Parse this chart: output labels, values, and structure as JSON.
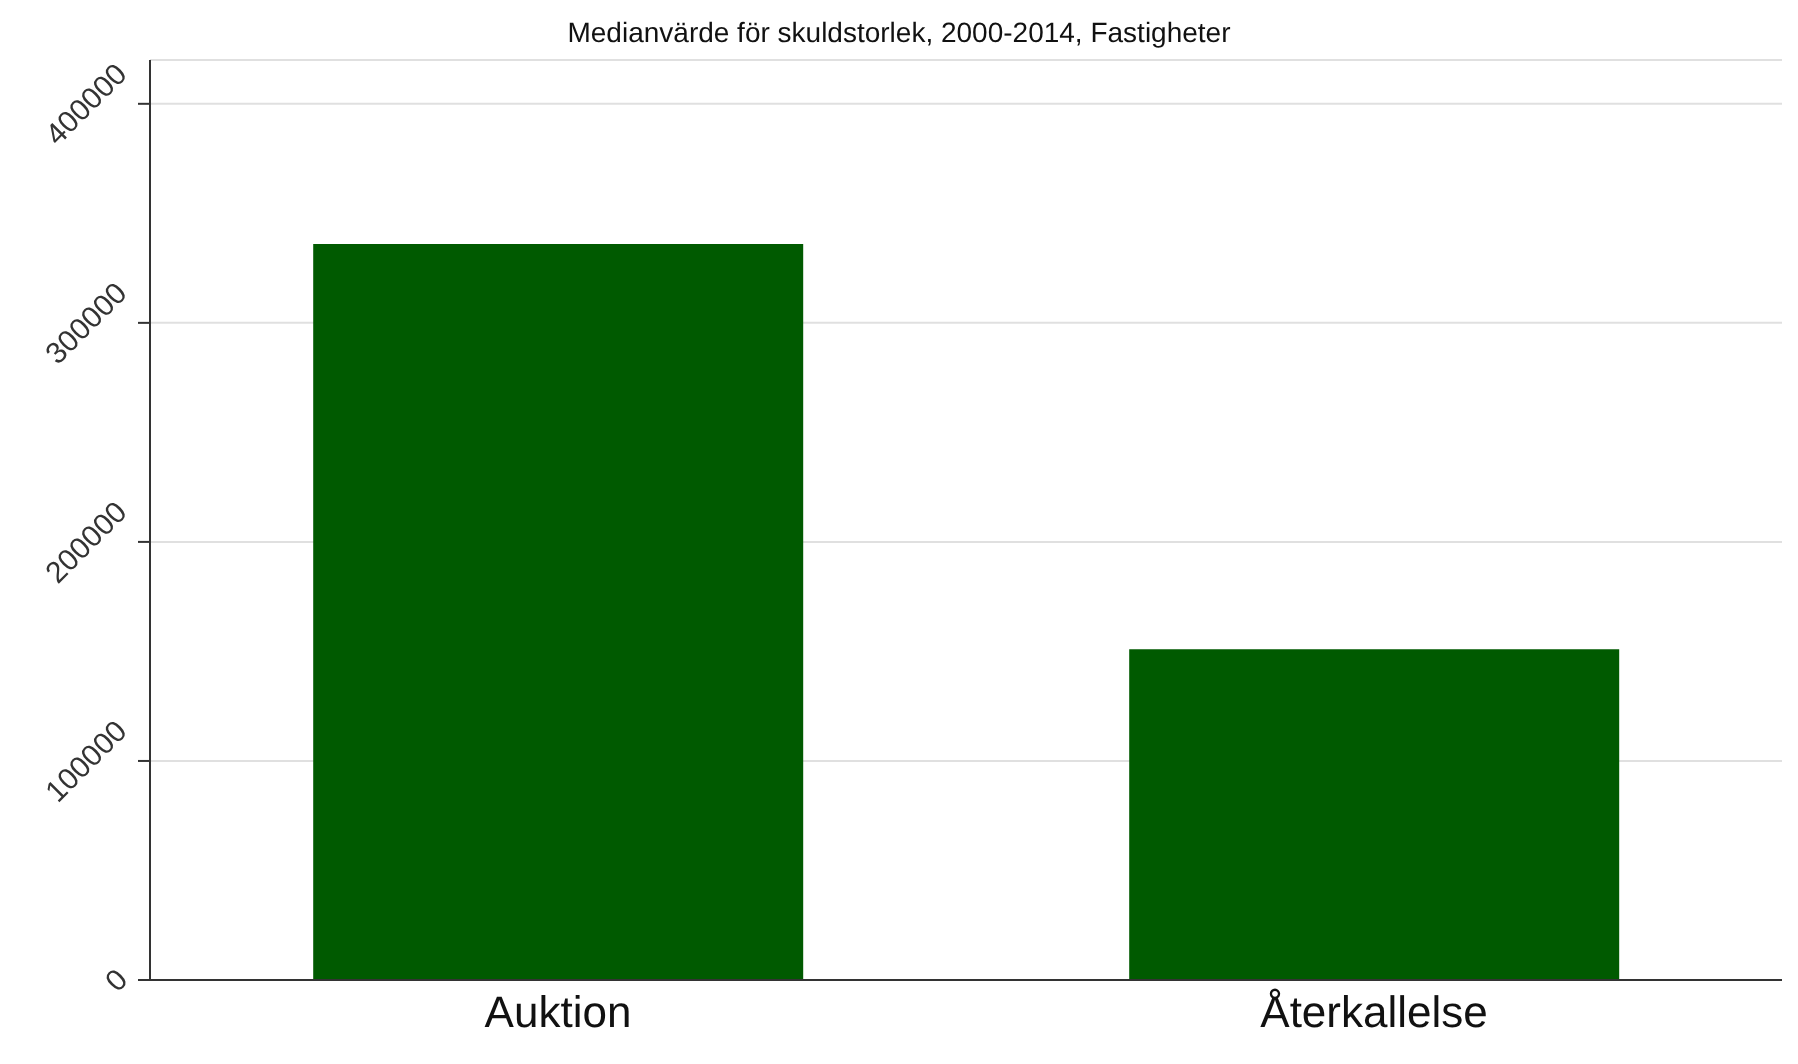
{
  "chart_data": {
    "type": "bar",
    "title": "Medianvärde för skuldstorlek, 2000-2014, Fastigheter",
    "categories": [
      "Auktion",
      "Återkallelse"
    ],
    "values": [
      336000,
      151000
    ],
    "color": "#005a00",
    "ylim": [
      0,
      420000
    ],
    "yticks": [
      0,
      100000,
      200000,
      300000,
      400000
    ],
    "grid": "y"
  }
}
